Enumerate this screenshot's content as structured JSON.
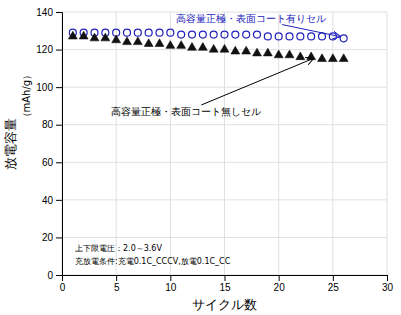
{
  "chart_data": {
    "type": "scatter",
    "xlabel": "サイクル数",
    "ylabel": [
      "放電容量",
      "（mAh/g）"
    ],
    "xlim": [
      0,
      30
    ],
    "ylim": [
      0,
      140
    ],
    "xticks": [
      0,
      5,
      10,
      15,
      20,
      25,
      30
    ],
    "yticks": [
      0,
      20,
      40,
      60,
      80,
      100,
      120,
      140
    ],
    "grid": true,
    "x": [
      1,
      2,
      3,
      4,
      5,
      6,
      7,
      8,
      9,
      10,
      11,
      12,
      13,
      14,
      15,
      16,
      17,
      18,
      19,
      20,
      21,
      22,
      23,
      24,
      25,
      26
    ],
    "series": [
      {
        "color": "#2222bb",
        "marker": "circle-open",
        "values": [
          129,
          129,
          129,
          129,
          129,
          129,
          129,
          129,
          129,
          129,
          128,
          128,
          128,
          128,
          128,
          128,
          128,
          128,
          127,
          127,
          127,
          127,
          127,
          127,
          127,
          126
        ]
      },
      {
        "color": "#111111",
        "marker": "triangle",
        "values": [
          127,
          127,
          126,
          126,
          125,
          124,
          124,
          123,
          123,
          122,
          122,
          121,
          121,
          120,
          120,
          119,
          119,
          118,
          118,
          117,
          117,
          116,
          116,
          115,
          115,
          115
        ]
      }
    ],
    "annotations": [
      {
        "text": "高容量正極・表面コート有りセル",
        "x": 26,
        "y": 126.5,
        "color": "#2222bb"
      },
      {
        "text": "高容量正極・表面コート無しセル",
        "x": 23.5,
        "y": 116,
        "color": "black"
      },
      {
        "text": "上下限電圧：2.0～3.6V",
        "color": "black"
      },
      {
        "text": "充放電条件:充電0.1C_CCCV,放電0.1C_CC",
        "color": "black"
      }
    ]
  }
}
